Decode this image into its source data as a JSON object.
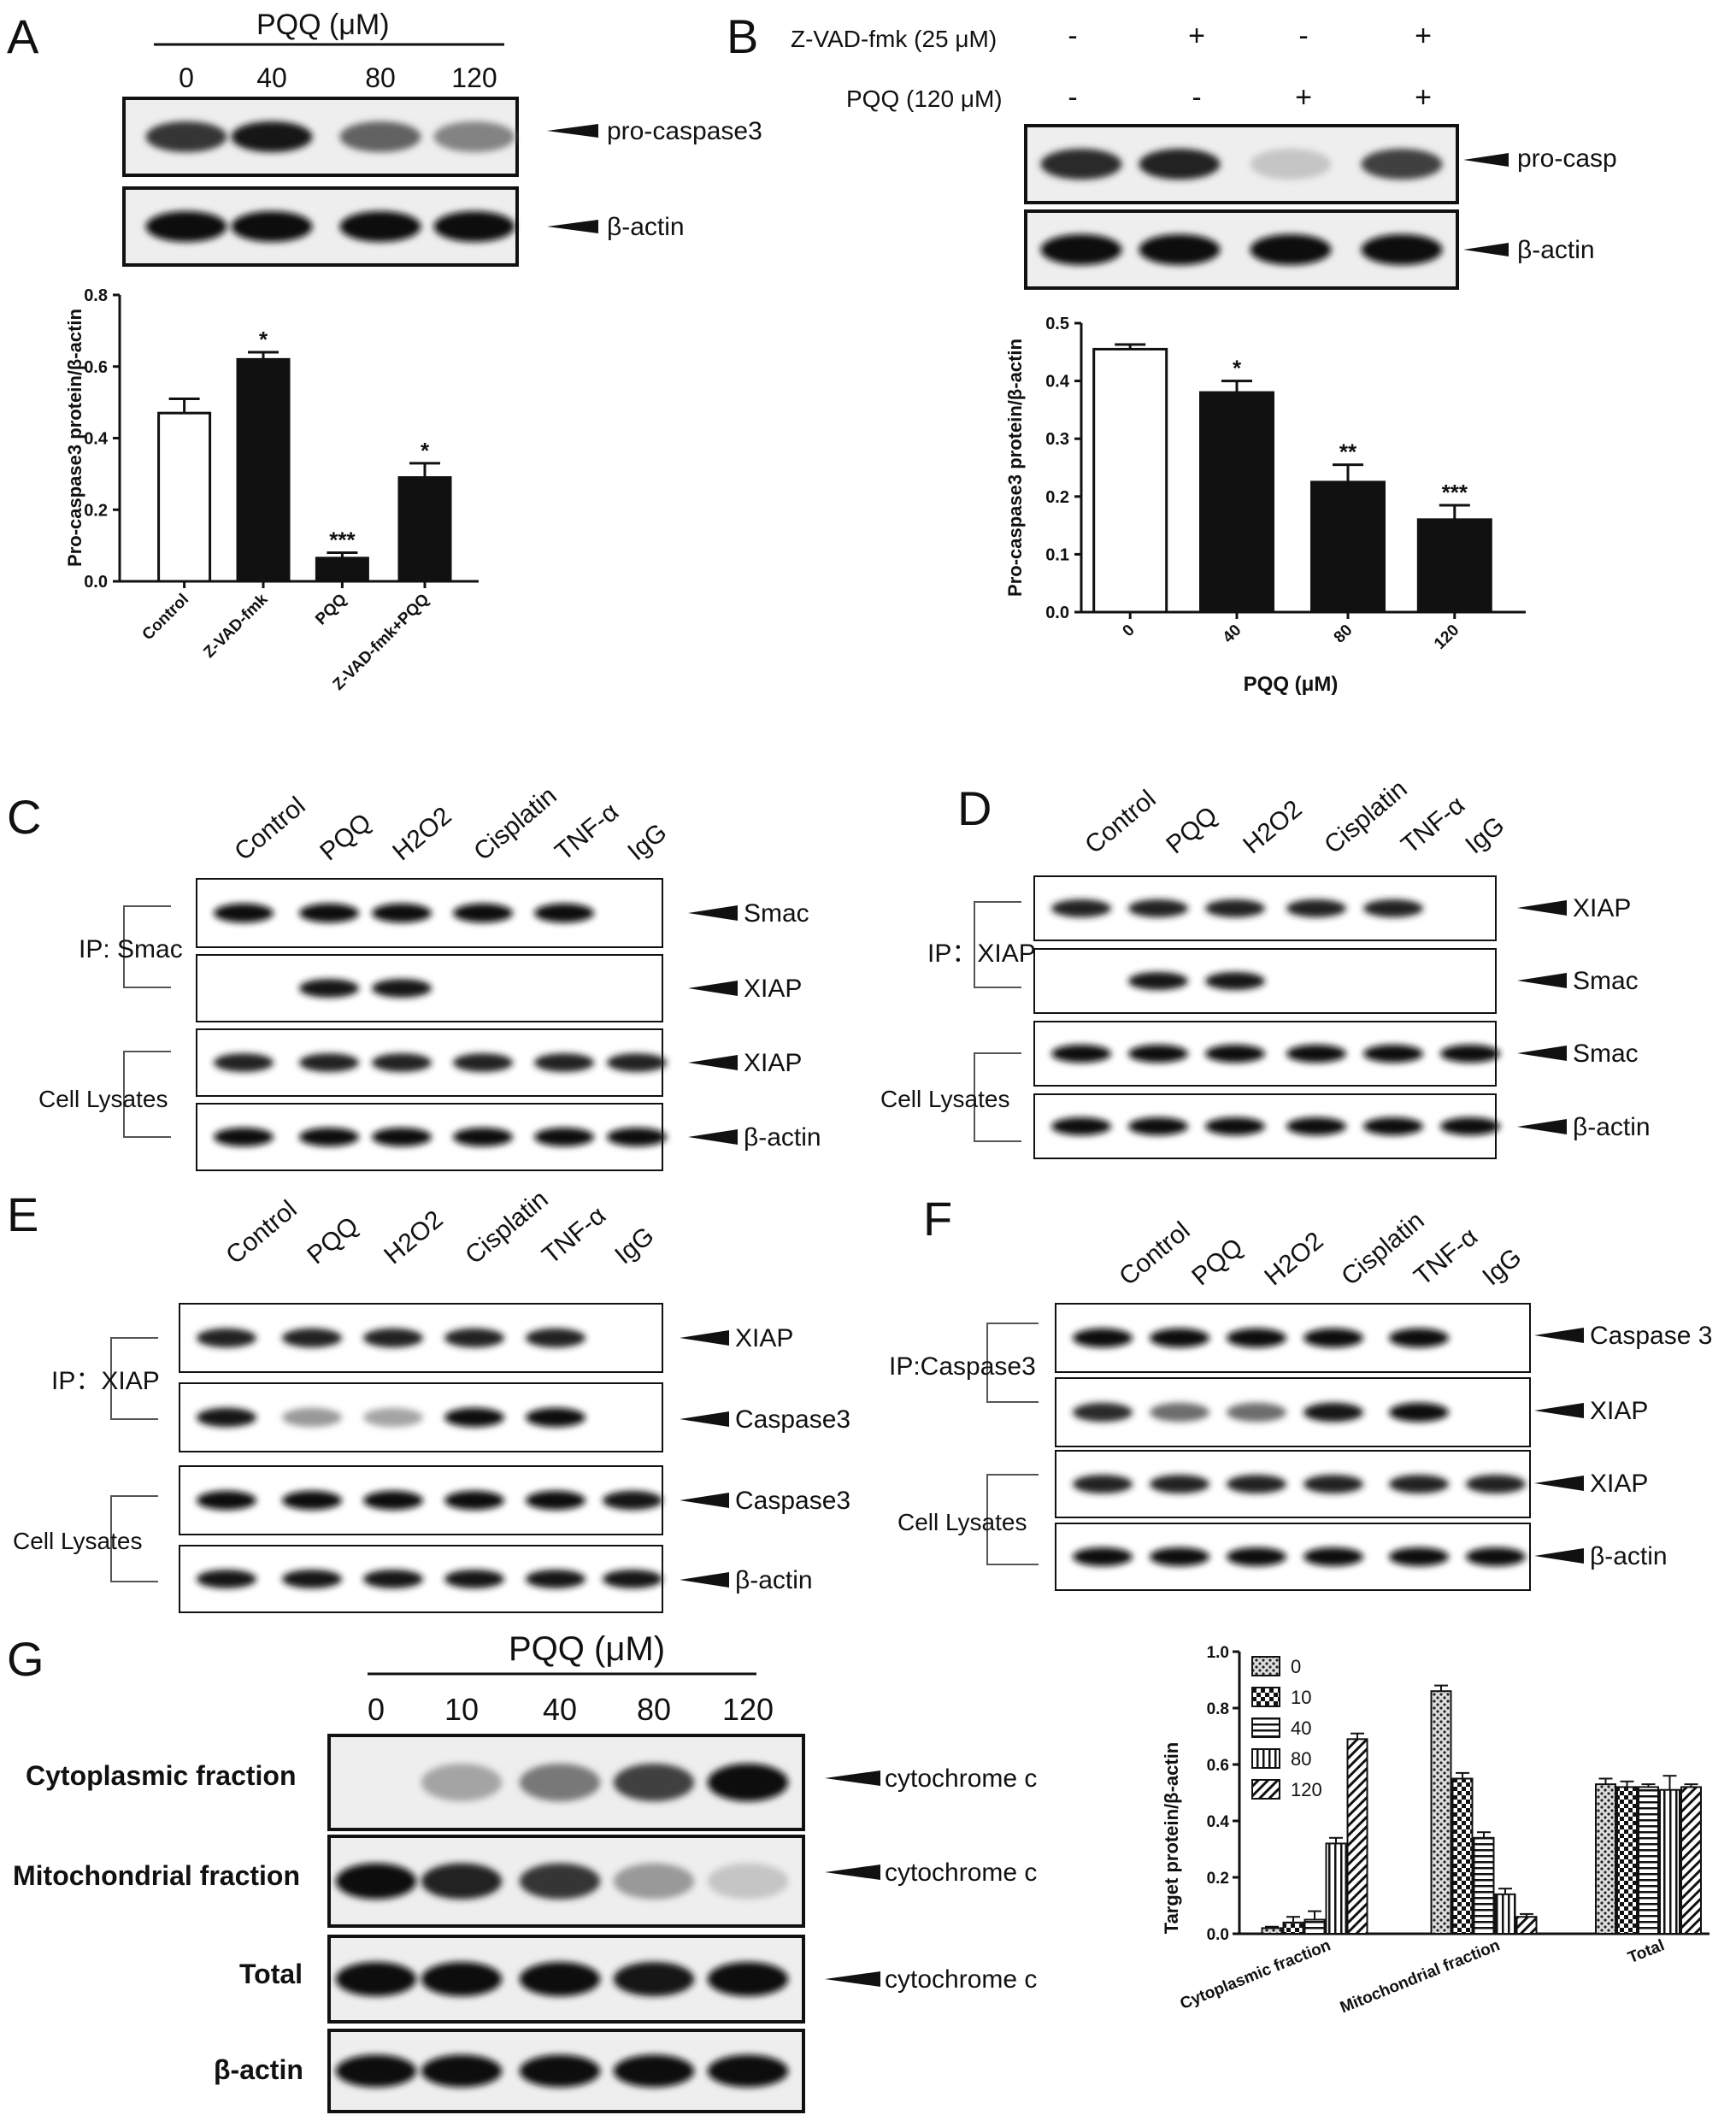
{
  "panelA": {
    "letter": "A",
    "header": "PQQ (μM)",
    "lanes": [
      "0",
      "40",
      "80",
      "120"
    ],
    "bands": [
      "pro-caspase3",
      "β-actin"
    ],
    "band_intensity": [
      [
        0.8,
        0.95,
        0.6,
        0.45
      ],
      [
        1,
        1,
        1,
        1
      ]
    ],
    "chart_data": {
      "type": "bar",
      "categories": [
        "Control",
        "Z-VAD-fmk",
        "PQQ",
        "Z-VAD-fmk+PQQ"
      ],
      "values": [
        0.47,
        0.62,
        0.065,
        0.29
      ],
      "errors": [
        0.04,
        0.02,
        0.015,
        0.04
      ],
      "significance": [
        "",
        "*",
        "***",
        "*"
      ],
      "fills": [
        "#ffffff",
        "#111111",
        "#111111",
        "#111111"
      ],
      "ylabel": "Pro-caspase3 protein/β-actin",
      "ylim": [
        0,
        0.8
      ],
      "yticks": [
        "0.0",
        "0.2",
        "0.4",
        "0.6",
        "0.8"
      ]
    }
  },
  "panelB": {
    "letter": "B",
    "row1_label": "Z-VAD-fmk (25 μM)",
    "row1_signs": [
      "-",
      "+",
      "-",
      "+"
    ],
    "row2_label": "PQQ (120 μM)",
    "row2_signs": [
      "-",
      "-",
      "+",
      "+"
    ],
    "bands": [
      "pro-casp",
      "β-actin"
    ],
    "band_intensity": [
      [
        0.85,
        0.9,
        0.15,
        0.75
      ],
      [
        1,
        1,
        1,
        1
      ]
    ],
    "chart_data": {
      "type": "bar",
      "categories": [
        "0",
        "40",
        "80",
        "120"
      ],
      "values": [
        0.455,
        0.38,
        0.225,
        0.16
      ],
      "errors": [
        0.008,
        0.02,
        0.03,
        0.025
      ],
      "significance": [
        "",
        "*",
        "**",
        "***"
      ],
      "fills": [
        "#ffffff",
        "#111111",
        "#111111",
        "#111111"
      ],
      "xlabel": "PQQ (μM)",
      "ylabel": "Pro-caspase3 protein/β-actin",
      "ylim": [
        0,
        0.5
      ],
      "yticks": [
        "0.0",
        "0.1",
        "0.2",
        "0.3",
        "0.4",
        "0.5"
      ]
    }
  },
  "panelC": {
    "letter": "C",
    "lanes": [
      "Control",
      "PQQ",
      "H2O2",
      "Cisplatin",
      "TNF-α",
      "IgG"
    ],
    "ip_label": "IP: Smac",
    "lysate_label": "Cell Lysates",
    "bands": [
      "Smac",
      "XIAP",
      "XIAP",
      "β-actin"
    ],
    "band_intensity": [
      [
        1,
        1,
        1,
        1,
        1,
        0
      ],
      [
        0,
        0.95,
        0.95,
        0,
        0,
        0
      ],
      [
        0.9,
        0.9,
        0.9,
        0.9,
        0.9,
        0.9
      ],
      [
        1,
        1,
        1,
        1,
        1,
        1
      ]
    ]
  },
  "panelD": {
    "letter": "D",
    "lanes": [
      "Control",
      "PQQ",
      "H2O2",
      "Cisplatin",
      "TNF-α",
      "IgG"
    ],
    "ip_label": "IP：XIAP",
    "lysate_label": "Cell Lysates",
    "bands": [
      "XIAP",
      "Smac",
      "Smac",
      "β-actin"
    ],
    "band_intensity": [
      [
        0.9,
        0.9,
        0.9,
        0.9,
        0.9,
        0
      ],
      [
        0,
        0.95,
        0.95,
        0,
        0,
        0
      ],
      [
        1,
        1,
        1,
        1,
        1,
        1
      ],
      [
        1,
        1,
        1,
        1,
        1,
        1
      ]
    ]
  },
  "panelE": {
    "letter": "E",
    "lanes": [
      "Control",
      "PQQ",
      "H2O2",
      "Cisplatin",
      "TNF-α",
      "IgG"
    ],
    "ip_label": "IP：XIAP",
    "lysate_label": "Cell Lysates",
    "bands": [
      "XIAP",
      "Caspase3",
      "Caspase3",
      "β-actin"
    ],
    "band_intensity": [
      [
        0.9,
        0.9,
        0.9,
        0.9,
        0.9,
        0
      ],
      [
        0.95,
        0.35,
        0.3,
        1,
        1,
        0
      ],
      [
        1,
        1,
        1,
        1,
        1,
        0.95
      ],
      [
        0.95,
        0.95,
        0.95,
        0.95,
        0.95,
        0.95
      ]
    ]
  },
  "panelF": {
    "letter": "F",
    "lanes": [
      "Control",
      "PQQ",
      "H2O2",
      "Cisplatin",
      "TNF-α",
      "IgG"
    ],
    "ip_label": "IP:Caspase3",
    "lysate_label": "Cell Lysates",
    "bands": [
      "Caspase 3",
      "XIAP",
      "XIAP",
      "β-actin"
    ],
    "band_intensity": [
      [
        1,
        1,
        1,
        1,
        1,
        0
      ],
      [
        0.85,
        0.55,
        0.55,
        0.95,
        1,
        0
      ],
      [
        0.9,
        0.9,
        0.9,
        0.9,
        0.9,
        0.9
      ],
      [
        1,
        1,
        1,
        1,
        1,
        1
      ]
    ]
  },
  "panelG": {
    "letter": "G",
    "header": "PQQ (μM)",
    "lanes": [
      "0",
      "10",
      "40",
      "80",
      "120"
    ],
    "row_labels": [
      "Cytoplasmic fraction",
      "Mitochondrial fraction",
      "Total",
      "β-actin"
    ],
    "bands": [
      "cytochrome c",
      "cytochrome c",
      "cytochrome c",
      ""
    ],
    "band_intensity": [
      [
        0,
        0.3,
        0.5,
        0.75,
        1
      ],
      [
        1,
        0.9,
        0.8,
        0.35,
        0.15
      ],
      [
        1,
        1,
        1,
        0.95,
        1
      ],
      [
        1,
        1,
        1,
        1,
        1
      ]
    ],
    "chart_data": {
      "type": "bar",
      "categories": [
        "Cytoplasmic fraction",
        "Mitochondrial fraction",
        "Total"
      ],
      "series": [
        {
          "name": "0",
          "values": [
            0.02,
            0.86,
            0.53
          ],
          "errors": [
            0.005,
            0.02,
            0.02
          ],
          "pattern": "dots"
        },
        {
          "name": "10",
          "values": [
            0.04,
            0.55,
            0.52
          ],
          "errors": [
            0.02,
            0.02,
            0.02
          ],
          "pattern": "checker"
        },
        {
          "name": "40",
          "values": [
            0.05,
            0.34,
            0.52
          ],
          "errors": [
            0.03,
            0.02,
            0.01
          ],
          "pattern": "hlines"
        },
        {
          "name": "80",
          "values": [
            0.32,
            0.14,
            0.51
          ],
          "errors": [
            0.02,
            0.02,
            0.05
          ],
          "pattern": "vlines"
        },
        {
          "name": "120",
          "values": [
            0.69,
            0.06,
            0.52
          ],
          "errors": [
            0.02,
            0.01,
            0.01
          ],
          "pattern": "diag"
        }
      ],
      "ylabel": "Target protein/β-actin",
      "ylim": [
        0,
        1.0
      ],
      "yticks": [
        "0.0",
        "0.2",
        "0.4",
        "0.6",
        "0.8",
        "1.0"
      ],
      "legend": "top-left"
    }
  }
}
